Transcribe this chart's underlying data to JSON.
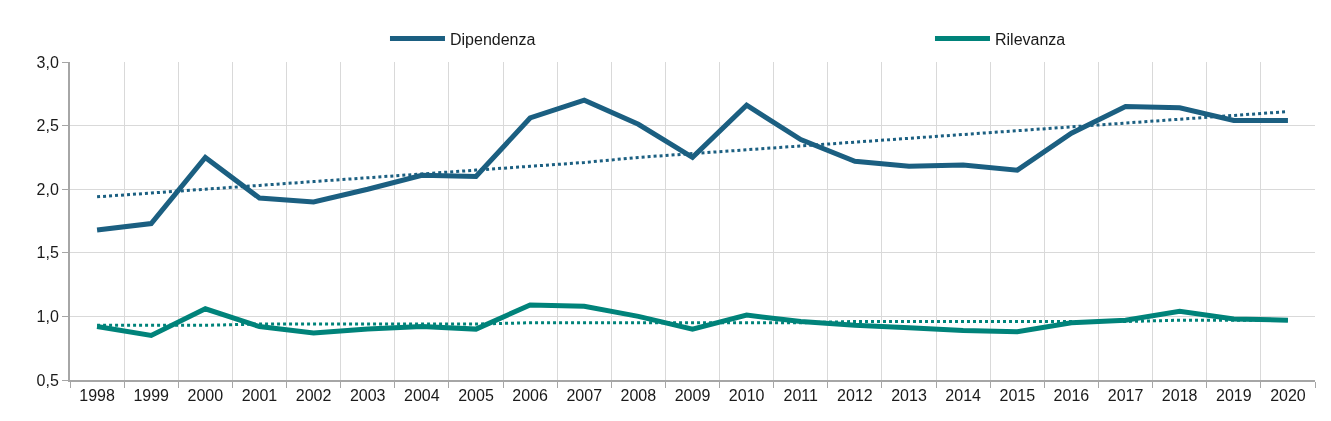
{
  "chart_data": {
    "type": "line",
    "categories": [
      "1998",
      "1999",
      "2000",
      "2001",
      "2002",
      "2003",
      "2004",
      "2005",
      "2006",
      "2007",
      "2008",
      "2009",
      "2010",
      "2011",
      "2012",
      "2013",
      "2014",
      "2015",
      "2016",
      "2017",
      "2018",
      "2019",
      "2020"
    ],
    "ylim": [
      0.5,
      3.0
    ],
    "yticks": [
      {
        "value": 0.5,
        "label": "0,5"
      },
      {
        "value": 1.0,
        "label": "1,0"
      },
      {
        "value": 1.5,
        "label": "1,5"
      },
      {
        "value": 2.0,
        "label": "2,0"
      },
      {
        "value": 2.5,
        "label": "2,5"
      },
      {
        "value": 3.0,
        "label": "3,0"
      }
    ],
    "grid": true,
    "legend": "top",
    "series": [
      {
        "name": "Dipendenza",
        "color": "#1b5f81",
        "line_style": "solid",
        "values": [
          1.68,
          1.73,
          2.25,
          1.93,
          1.9,
          2.0,
          2.11,
          2.1,
          2.56,
          2.7,
          2.51,
          2.25,
          2.66,
          2.39,
          2.22,
          2.18,
          2.19,
          2.15,
          2.44,
          2.65,
          2.64,
          2.54,
          2.54
        ]
      },
      {
        "name": "Rilevanza",
        "color": "#00837a",
        "line_style": "solid",
        "values": [
          0.92,
          0.85,
          1.06,
          0.92,
          0.87,
          0.9,
          0.92,
          0.9,
          1.09,
          1.08,
          1.0,
          0.9,
          1.01,
          0.96,
          0.93,
          0.91,
          0.89,
          0.88,
          0.95,
          0.97,
          1.04,
          0.98,
          0.97
        ]
      },
      {
        "type": "line",
        "color": "#1b5f81",
        "line_style": "dotted",
        "values": [
          1.94,
          1.97,
          2.0,
          2.03,
          2.06,
          2.09,
          2.12,
          2.15,
          2.18,
          2.21,
          2.25,
          2.28,
          2.31,
          2.34,
          2.37,
          2.4,
          2.43,
          2.46,
          2.49,
          2.52,
          2.55,
          2.58,
          2.61
        ]
      },
      {
        "type": "line",
        "color": "#00837a",
        "line_style": "dotted",
        "values": [
          0.93,
          0.93,
          0.93,
          0.94,
          0.94,
          0.94,
          0.94,
          0.94,
          0.95,
          0.95,
          0.95,
          0.95,
          0.95,
          0.95,
          0.96,
          0.96,
          0.96,
          0.96,
          0.96,
          0.96,
          0.97,
          0.97,
          0.97
        ]
      }
    ]
  }
}
